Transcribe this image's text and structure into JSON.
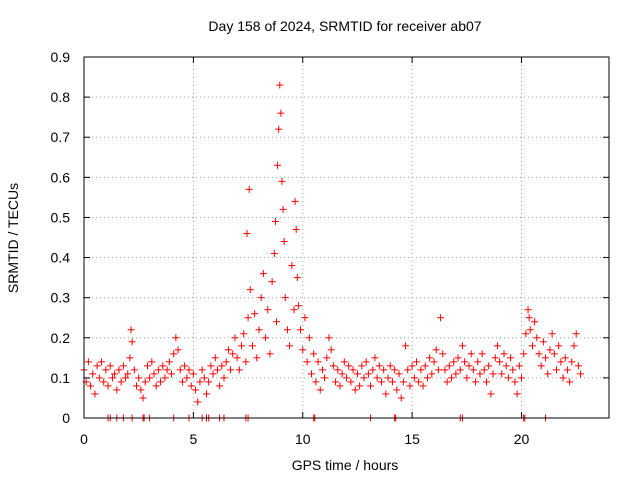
{
  "chart_data": {
    "type": "scatter",
    "title": "Day 158 of 2024, SRMTID for receiver ab07",
    "xlabel": "GPS time / hours",
    "ylabel": "SRMTID / TECUs",
    "xlim": [
      0,
      24
    ],
    "ylim": [
      0,
      0.9
    ],
    "xticks": [
      0,
      5,
      10,
      15,
      20
    ],
    "yticks": [
      0,
      0.1,
      0.2,
      0.3,
      0.4,
      0.5,
      0.6,
      0.7,
      0.8,
      0.9
    ],
    "xtick_labels": [
      "0",
      "5",
      "10",
      "15",
      "20"
    ],
    "ytick_labels": [
      "0",
      "0.1",
      "0.2",
      "0.3",
      "0.4",
      "0.5",
      "0.6",
      "0.7",
      "0.8",
      "0.9"
    ],
    "grid": true,
    "marker": "plus",
    "color": "#ff0000",
    "series": [
      {
        "name": "SRMTID",
        "points": [
          [
            0.0,
            0.12
          ],
          [
            0.1,
            0.09
          ],
          [
            0.2,
            0.14
          ],
          [
            0.3,
            0.08
          ],
          [
            0.4,
            0.11
          ],
          [
            0.5,
            0.06
          ],
          [
            0.6,
            0.13
          ],
          [
            0.7,
            0.1
          ],
          [
            0.8,
            0.14
          ],
          [
            0.9,
            0.09
          ],
          [
            1.0,
            0.12
          ],
          [
            1.1,
            0.08
          ],
          [
            1.2,
            0.13
          ],
          [
            1.3,
            0.1
          ],
          [
            1.4,
            0.11
          ],
          [
            1.5,
            0.07
          ],
          [
            1.6,
            0.12
          ],
          [
            1.7,
            0.09
          ],
          [
            1.8,
            0.13
          ],
          [
            1.9,
            0.1
          ],
          [
            2.0,
            0.11
          ],
          [
            2.1,
            0.15
          ],
          [
            2.15,
            0.22
          ],
          [
            2.2,
            0.19
          ],
          [
            2.3,
            0.12
          ],
          [
            2.4,
            0.08
          ],
          [
            2.5,
            0.1
          ],
          [
            2.6,
            0.07
          ],
          [
            2.7,
            0.05
          ],
          [
            2.8,
            0.09
          ],
          [
            2.9,
            0.13
          ],
          [
            3.0,
            0.1
          ],
          [
            3.1,
            0.14
          ],
          [
            3.2,
            0.11
          ],
          [
            3.3,
            0.08
          ],
          [
            3.4,
            0.12
          ],
          [
            3.5,
            0.09
          ],
          [
            3.6,
            0.13
          ],
          [
            3.7,
            0.1
          ],
          [
            3.8,
            0.12
          ],
          [
            3.9,
            0.14
          ],
          [
            4.0,
            0.11
          ],
          [
            4.1,
            0.16
          ],
          [
            4.2,
            0.2
          ],
          [
            4.3,
            0.17
          ],
          [
            4.4,
            0.12
          ],
          [
            4.5,
            0.09
          ],
          [
            4.6,
            0.13
          ],
          [
            4.7,
            0.1
          ],
          [
            4.8,
            0.12
          ],
          [
            4.9,
            0.08
          ],
          [
            5.0,
            0.11
          ],
          [
            5.1,
            0.07
          ],
          [
            5.2,
            0.04
          ],
          [
            5.3,
            0.09
          ],
          [
            5.4,
            0.12
          ],
          [
            5.5,
            0.1
          ],
          [
            5.6,
            0.06
          ],
          [
            5.7,
            0.09
          ],
          [
            5.8,
            0.13
          ],
          [
            5.9,
            0.11
          ],
          [
            6.0,
            0.15
          ],
          [
            6.1,
            0.12
          ],
          [
            6.2,
            0.08
          ],
          [
            6.3,
            0.13
          ],
          [
            6.4,
            0.1
          ],
          [
            6.5,
            0.14
          ],
          [
            6.6,
            0.17
          ],
          [
            6.7,
            0.12
          ],
          [
            6.8,
            0.16
          ],
          [
            6.9,
            0.2
          ],
          [
            7.0,
            0.15
          ],
          [
            7.1,
            0.12
          ],
          [
            7.2,
            0.18
          ],
          [
            7.3,
            0.21
          ],
          [
            7.4,
            0.14
          ],
          [
            7.45,
            0.46
          ],
          [
            7.5,
            0.25
          ],
          [
            7.55,
            0.57
          ],
          [
            7.6,
            0.32
          ],
          [
            7.7,
            0.18
          ],
          [
            7.8,
            0.26
          ],
          [
            7.9,
            0.15
          ],
          [
            8.0,
            0.22
          ],
          [
            8.1,
            0.3
          ],
          [
            8.2,
            0.36
          ],
          [
            8.3,
            0.2
          ],
          [
            8.4,
            0.27
          ],
          [
            8.5,
            0.16
          ],
          [
            8.6,
            0.34
          ],
          [
            8.7,
            0.41
          ],
          [
            8.75,
            0.49
          ],
          [
            8.8,
            0.24
          ],
          [
            8.85,
            0.63
          ],
          [
            8.9,
            0.72
          ],
          [
            8.95,
            0.83
          ],
          [
            9.0,
            0.76
          ],
          [
            9.05,
            0.59
          ],
          [
            9.1,
            0.52
          ],
          [
            9.15,
            0.44
          ],
          [
            9.2,
            0.3
          ],
          [
            9.3,
            0.22
          ],
          [
            9.4,
            0.18
          ],
          [
            9.5,
            0.38
          ],
          [
            9.6,
            0.27
          ],
          [
            9.65,
            0.54
          ],
          [
            9.7,
            0.47
          ],
          [
            9.75,
            0.35
          ],
          [
            9.8,
            0.28
          ],
          [
            9.9,
            0.22
          ],
          [
            10.0,
            0.17
          ],
          [
            10.1,
            0.25
          ],
          [
            10.2,
            0.14
          ],
          [
            10.3,
            0.2
          ],
          [
            10.4,
            0.11
          ],
          [
            10.5,
            0.16
          ],
          [
            10.6,
            0.09
          ],
          [
            10.7,
            0.14
          ],
          [
            10.8,
            0.07
          ],
          [
            10.9,
            0.12
          ],
          [
            11.0,
            0.1
          ],
          [
            11.1,
            0.15
          ],
          [
            11.2,
            0.2
          ],
          [
            11.3,
            0.17
          ],
          [
            11.4,
            0.13
          ],
          [
            11.5,
            0.09
          ],
          [
            11.6,
            0.12
          ],
          [
            11.7,
            0.08
          ],
          [
            11.8,
            0.11
          ],
          [
            11.9,
            0.14
          ],
          [
            12.0,
            0.1
          ],
          [
            12.1,
            0.13
          ],
          [
            12.2,
            0.09
          ],
          [
            12.3,
            0.12
          ],
          [
            12.4,
            0.07
          ],
          [
            12.5,
            0.11
          ],
          [
            12.6,
            0.08
          ],
          [
            12.7,
            0.13
          ],
          [
            12.8,
            0.1
          ],
          [
            12.9,
            0.14
          ],
          [
            13.0,
            0.11
          ],
          [
            13.1,
            0.08
          ],
          [
            13.2,
            0.12
          ],
          [
            13.3,
            0.15
          ],
          [
            13.4,
            0.1
          ],
          [
            13.5,
            0.13
          ],
          [
            13.6,
            0.09
          ],
          [
            13.7,
            0.12
          ],
          [
            13.8,
            0.06
          ],
          [
            13.9,
            0.1
          ],
          [
            14.0,
            0.13
          ],
          [
            14.1,
            0.09
          ],
          [
            14.2,
            0.12
          ],
          [
            14.3,
            0.07
          ],
          [
            14.4,
            0.11
          ],
          [
            14.5,
            0.05
          ],
          [
            14.6,
            0.09
          ],
          [
            14.7,
            0.18
          ],
          [
            14.8,
            0.12
          ],
          [
            14.9,
            0.08
          ],
          [
            15.0,
            0.13
          ],
          [
            15.1,
            0.1
          ],
          [
            15.2,
            0.14
          ],
          [
            15.3,
            0.09
          ],
          [
            15.4,
            0.12
          ],
          [
            15.5,
            0.08
          ],
          [
            15.6,
            0.13
          ],
          [
            15.7,
            0.1
          ],
          [
            15.8,
            0.15
          ],
          [
            15.9,
            0.11
          ],
          [
            16.0,
            0.14
          ],
          [
            16.1,
            0.17
          ],
          [
            16.2,
            0.12
          ],
          [
            16.3,
            0.25
          ],
          [
            16.4,
            0.16
          ],
          [
            16.5,
            0.12
          ],
          [
            16.6,
            0.09
          ],
          [
            16.7,
            0.13
          ],
          [
            16.8,
            0.1
          ],
          [
            16.9,
            0.14
          ],
          [
            17.0,
            0.11
          ],
          [
            17.1,
            0.15
          ],
          [
            17.2,
            0.12
          ],
          [
            17.3,
            0.18
          ],
          [
            17.4,
            0.14
          ],
          [
            17.5,
            0.1
          ],
          [
            17.6,
            0.13
          ],
          [
            17.7,
            0.16
          ],
          [
            17.8,
            0.12
          ],
          [
            17.9,
            0.09
          ],
          [
            18.0,
            0.14
          ],
          [
            18.1,
            0.11
          ],
          [
            18.2,
            0.16
          ],
          [
            18.3,
            0.12
          ],
          [
            18.4,
            0.09
          ],
          [
            18.5,
            0.13
          ],
          [
            18.6,
            0.06
          ],
          [
            18.7,
            0.11
          ],
          [
            18.8,
            0.15
          ],
          [
            18.9,
            0.18
          ],
          [
            19.0,
            0.14
          ],
          [
            19.1,
            0.11
          ],
          [
            19.2,
            0.16
          ],
          [
            19.3,
            0.13
          ],
          [
            19.4,
            0.1
          ],
          [
            19.5,
            0.15
          ],
          [
            19.6,
            0.12
          ],
          [
            19.7,
            0.09
          ],
          [
            19.8,
            0.06
          ],
          [
            19.9,
            0.13
          ],
          [
            20.0,
            0.1
          ],
          [
            20.1,
            0.16
          ],
          [
            20.2,
            0.21
          ],
          [
            20.3,
            0.27
          ],
          [
            20.35,
            0.25
          ],
          [
            20.4,
            0.22
          ],
          [
            20.5,
            0.18
          ],
          [
            20.6,
            0.24
          ],
          [
            20.7,
            0.2
          ],
          [
            20.8,
            0.16
          ],
          [
            20.9,
            0.13
          ],
          [
            21.0,
            0.19
          ],
          [
            21.1,
            0.15
          ],
          [
            21.2,
            0.11
          ],
          [
            21.3,
            0.17
          ],
          [
            21.4,
            0.21
          ],
          [
            21.5,
            0.16
          ],
          [
            21.6,
            0.12
          ],
          [
            21.7,
            0.18
          ],
          [
            21.8,
            0.14
          ],
          [
            21.9,
            0.1
          ],
          [
            22.0,
            0.15
          ],
          [
            22.1,
            0.12
          ],
          [
            22.2,
            0.09
          ],
          [
            22.3,
            0.14
          ],
          [
            22.4,
            0.18
          ],
          [
            22.5,
            0.21
          ],
          [
            22.6,
            0.13
          ],
          [
            22.7,
            0.11
          ]
        ]
      }
    ],
    "zero_points_x": [
      1.1,
      1.2,
      1.5,
      1.8,
      2.2,
      2.7,
      2.75,
      3.0,
      4.1,
      4.8,
      5.4,
      5.6,
      5.7,
      6.2,
      6.4,
      7.4,
      7.5,
      10.5,
      10.55,
      13.1,
      14.2,
      14.25,
      17.2,
      17.3,
      20.1,
      20.15,
      21.1
    ]
  }
}
